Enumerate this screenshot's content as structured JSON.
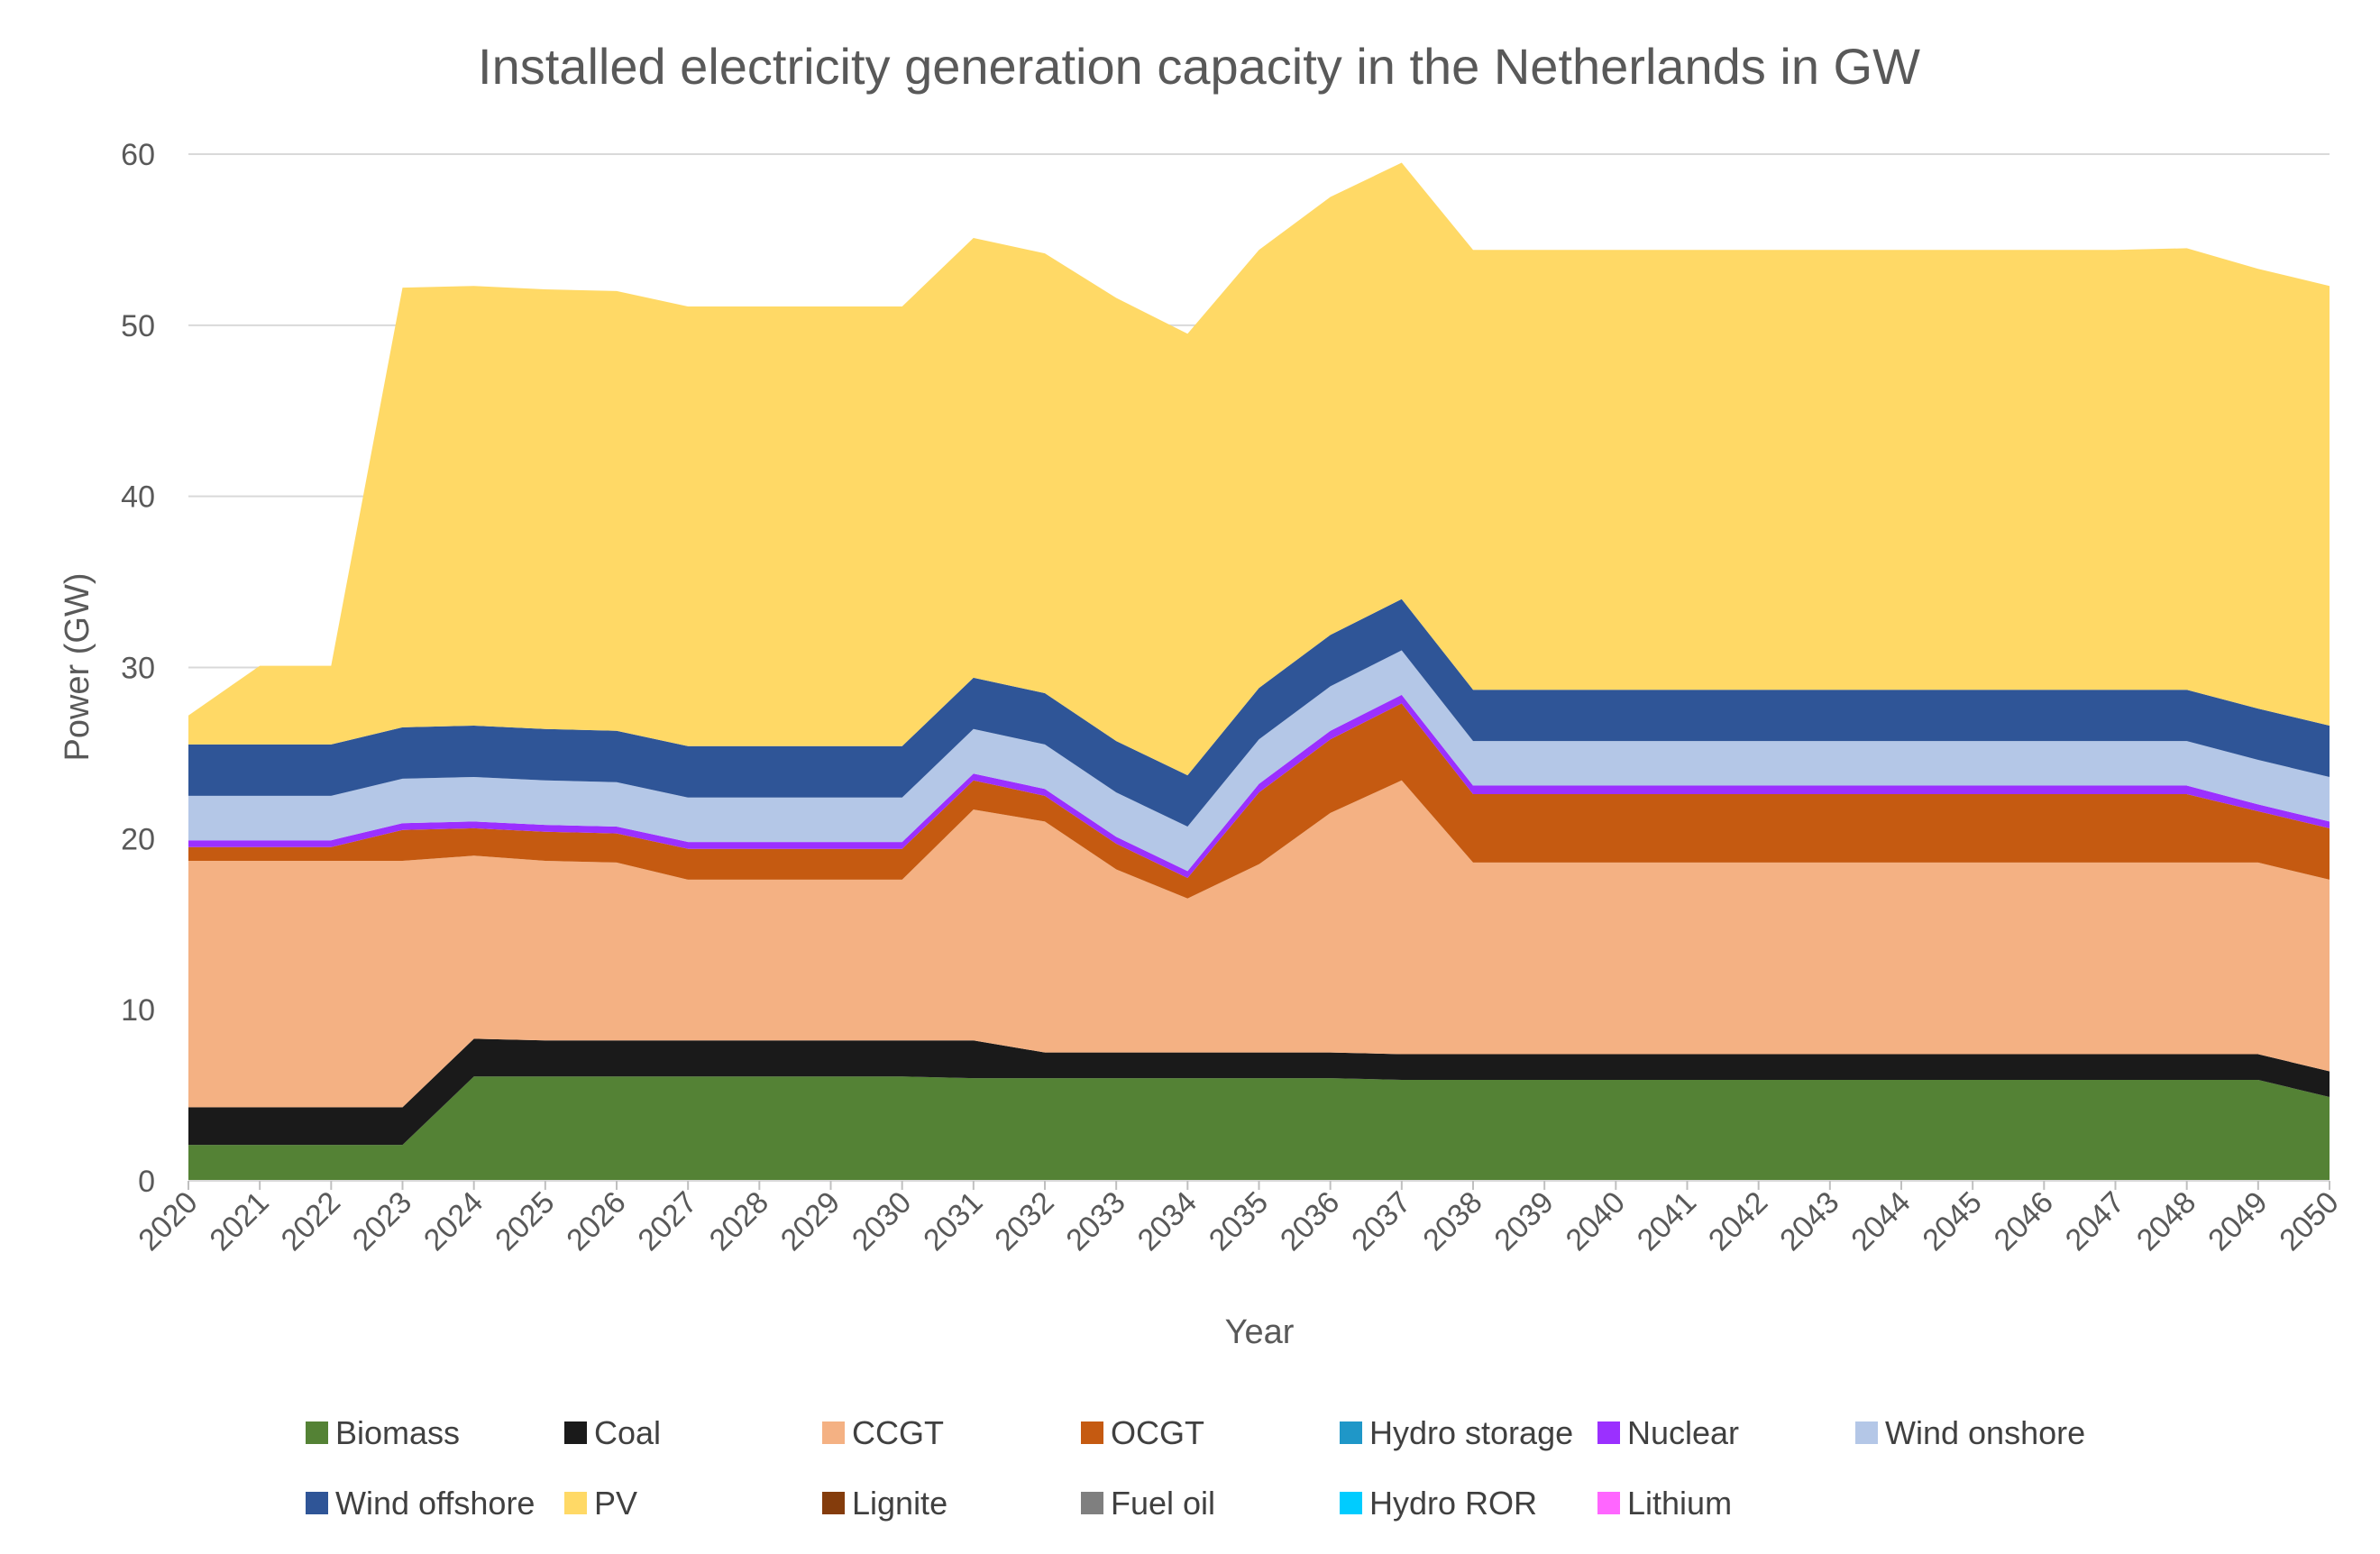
{
  "chart_data": {
    "type": "area",
    "stacked": true,
    "title": "Installed electricity generation capacity in the Netherlands in GW",
    "xlabel": "Year",
    "ylabel": "Power (GW)",
    "ylim": [
      0,
      60
    ],
    "yticks": [
      "0",
      "10",
      "20",
      "30",
      "40",
      "50",
      "60"
    ],
    "grid": "horizontal",
    "legend_position": "bottom",
    "categories": [
      "2020",
      "2021",
      "2022",
      "2023",
      "2024",
      "2025",
      "2026",
      "2027",
      "2028",
      "2029",
      "2030",
      "2031",
      "2032",
      "2033",
      "2034",
      "2035",
      "2036",
      "2037",
      "2038",
      "2039",
      "2040",
      "2041",
      "2042",
      "2043",
      "2044",
      "2045",
      "2046",
      "2047",
      "2048",
      "2049",
      "2050"
    ],
    "series": [
      {
        "name": "Biomass",
        "color": "#548235",
        "values": [
          2.1,
          2.1,
          2.1,
          2.1,
          6.1,
          6.1,
          6.1,
          6.1,
          6.1,
          6.1,
          6.1,
          6.0,
          6.0,
          6.0,
          6.0,
          6.0,
          6.0,
          5.9,
          5.9,
          5.9,
          5.9,
          5.9,
          5.9,
          5.9,
          5.9,
          5.9,
          5.9,
          5.9,
          5.9,
          5.9,
          4.9
        ]
      },
      {
        "name": "Coal",
        "color": "#1a1a1a",
        "values": [
          2.2,
          2.2,
          2.2,
          2.2,
          2.2,
          2.1,
          2.1,
          2.1,
          2.1,
          2.1,
          2.1,
          2.2,
          1.5,
          1.5,
          1.5,
          1.5,
          1.5,
          1.5,
          1.5,
          1.5,
          1.5,
          1.5,
          1.5,
          1.5,
          1.5,
          1.5,
          1.5,
          1.5,
          1.5,
          1.5,
          1.5
        ]
      },
      {
        "name": "CCGT",
        "color": "#f4b183",
        "values": [
          14.4,
          14.4,
          14.4,
          14.4,
          10.7,
          10.5,
          10.4,
          9.4,
          9.4,
          9.4,
          9.4,
          13.5,
          13.5,
          10.7,
          9.0,
          11.0,
          14.0,
          16.0,
          11.2,
          11.2,
          11.2,
          11.2,
          11.2,
          11.2,
          11.2,
          11.2,
          11.2,
          11.2,
          11.2,
          11.2,
          11.2
        ]
      },
      {
        "name": "OCGT",
        "color": "#c55a11",
        "values": [
          0.8,
          0.8,
          0.8,
          1.8,
          1.6,
          1.7,
          1.7,
          1.8,
          1.8,
          1.8,
          1.8,
          1.7,
          1.5,
          1.5,
          1.2,
          4.2,
          4.3,
          4.5,
          4.0,
          4.0,
          4.0,
          4.0,
          4.0,
          4.0,
          4.0,
          4.0,
          4.0,
          4.0,
          4.0,
          3.0,
          3.0
        ]
      },
      {
        "name": "Hydro storage",
        "color": "#1f97c8",
        "values": [
          0,
          0,
          0,
          0,
          0,
          0,
          0,
          0,
          0,
          0,
          0,
          0,
          0,
          0,
          0,
          0,
          0,
          0,
          0,
          0,
          0,
          0,
          0,
          0,
          0,
          0,
          0,
          0,
          0,
          0,
          0
        ]
      },
      {
        "name": "Nuclear",
        "color": "#9b30ff",
        "values": [
          0.4,
          0.4,
          0.4,
          0.4,
          0.4,
          0.4,
          0.4,
          0.4,
          0.4,
          0.4,
          0.4,
          0.4,
          0.4,
          0.4,
          0.4,
          0.5,
          0.5,
          0.5,
          0.5,
          0.5,
          0.5,
          0.5,
          0.5,
          0.5,
          0.5,
          0.5,
          0.5,
          0.5,
          0.5,
          0.4,
          0.4
        ]
      },
      {
        "name": "Wind onshore",
        "color": "#b4c7e7",
        "values": [
          2.6,
          2.6,
          2.6,
          2.6,
          2.6,
          2.6,
          2.6,
          2.6,
          2.6,
          2.6,
          2.6,
          2.6,
          2.6,
          2.6,
          2.6,
          2.6,
          2.6,
          2.6,
          2.6,
          2.6,
          2.6,
          2.6,
          2.6,
          2.6,
          2.6,
          2.6,
          2.6,
          2.6,
          2.6,
          2.6,
          2.6
        ]
      },
      {
        "name": "Wind offshore",
        "color": "#2f5597",
        "values": [
          3.0,
          3.0,
          3.0,
          3.0,
          3.0,
          3.0,
          3.0,
          3.0,
          3.0,
          3.0,
          3.0,
          3.0,
          3.0,
          3.0,
          3.0,
          3.0,
          3.0,
          3.0,
          3.0,
          3.0,
          3.0,
          3.0,
          3.0,
          3.0,
          3.0,
          3.0,
          3.0,
          3.0,
          3.0,
          3.0,
          3.0
        ]
      },
      {
        "name": "PV",
        "color": "#ffd966",
        "values": [
          1.7,
          4.6,
          4.6,
          25.7,
          25.7,
          25.7,
          25.7,
          25.7,
          25.7,
          25.7,
          25.7,
          25.7,
          25.7,
          25.9,
          25.8,
          25.6,
          25.6,
          25.5,
          25.7,
          25.7,
          25.7,
          25.7,
          25.7,
          25.7,
          25.7,
          25.7,
          25.7,
          25.7,
          25.8,
          25.7,
          25.7
        ]
      },
      {
        "name": "Lignite",
        "color": "#843c0c",
        "values": [
          0,
          0,
          0,
          0,
          0,
          0,
          0,
          0,
          0,
          0,
          0,
          0,
          0,
          0,
          0,
          0,
          0,
          0,
          0,
          0,
          0,
          0,
          0,
          0,
          0,
          0,
          0,
          0,
          0,
          0,
          0
        ]
      },
      {
        "name": "Fuel oil",
        "color": "#7f7f7f",
        "values": [
          0,
          0,
          0,
          0,
          0,
          0,
          0,
          0,
          0,
          0,
          0,
          0,
          0,
          0,
          0,
          0,
          0,
          0,
          0,
          0,
          0,
          0,
          0,
          0,
          0,
          0,
          0,
          0,
          0,
          0,
          0
        ]
      },
      {
        "name": "Hydro ROR",
        "color": "#00ccff",
        "values": [
          0,
          0,
          0,
          0,
          0,
          0,
          0,
          0,
          0,
          0,
          0,
          0,
          0,
          0,
          0,
          0,
          0,
          0,
          0,
          0,
          0,
          0,
          0,
          0,
          0,
          0,
          0,
          0,
          0,
          0,
          0
        ]
      },
      {
        "name": "Lithium",
        "color": "#ff66ff",
        "values": [
          0,
          0,
          0,
          0,
          0,
          0,
          0,
          0,
          0,
          0,
          0,
          0,
          0,
          0,
          0,
          0,
          0,
          0,
          0,
          0,
          0,
          0,
          0,
          0,
          0,
          0,
          0,
          0,
          0,
          0,
          0
        ]
      }
    ]
  }
}
